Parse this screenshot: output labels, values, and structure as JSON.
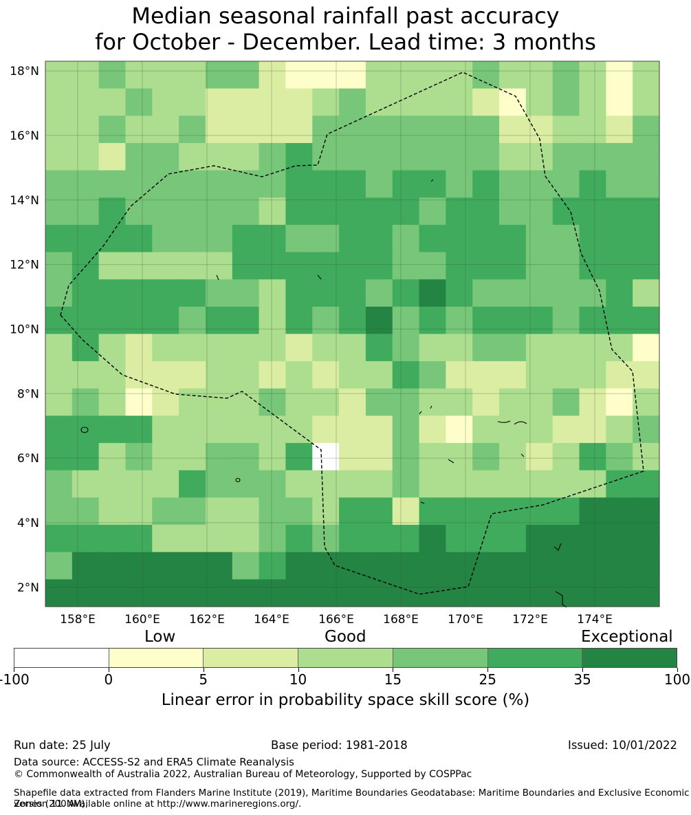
{
  "title": {
    "line1": "Median seasonal rainfall past accuracy",
    "line2": "for October - December. Lead time: 3 months"
  },
  "map": {
    "lon_range": [
      157,
      176
    ],
    "lat_range": [
      1.4,
      18.3
    ],
    "lon_ticks": [
      "158°E",
      "160°E",
      "162°E",
      "164°E",
      "166°E",
      "168°E",
      "170°E",
      "172°E",
      "174°E"
    ],
    "lat_ticks": [
      "18°N",
      "16°N",
      "14°N",
      "12°N",
      "10°N",
      "8°N",
      "6°N",
      "4°N",
      "2°N"
    ],
    "grid": true,
    "eez_boundary": "dashed black line"
  },
  "legend": {
    "categories": [
      "Low",
      "Good",
      "Exceptional"
    ],
    "tick_labels": [
      "-100",
      "0",
      "5",
      "10",
      "15",
      "25",
      "35",
      "100"
    ],
    "colors": [
      "#ffffff",
      "#fefecb",
      "#daeda2",
      "#addd8e",
      "#78c679",
      "#41ab5d",
      "#238443"
    ],
    "title": "Linear error in probability space skill score (%)"
  },
  "footer": {
    "run_date": "Run date: 25 July",
    "base_period": "Base period: 1981-2018",
    "issued": "Issued: 10/01/2022",
    "data_source": "Data source: ACCESS-S2 and ERA5 Climate Reanalysis",
    "copyright": "© Commonwealth of Australia 2022, Australian Bureau of Meteorology, Supported by COSPPac",
    "shapefile_line1": "Shapefile data extracted from Flanders Marine Institute (2019), Maritime Boundaries Geodatabase: Maritime Boundaries and Exclusive Economic Zones (200NM),",
    "shapefile_line2": "version 11. Available online at http://www.marineregions.org/."
  }
}
